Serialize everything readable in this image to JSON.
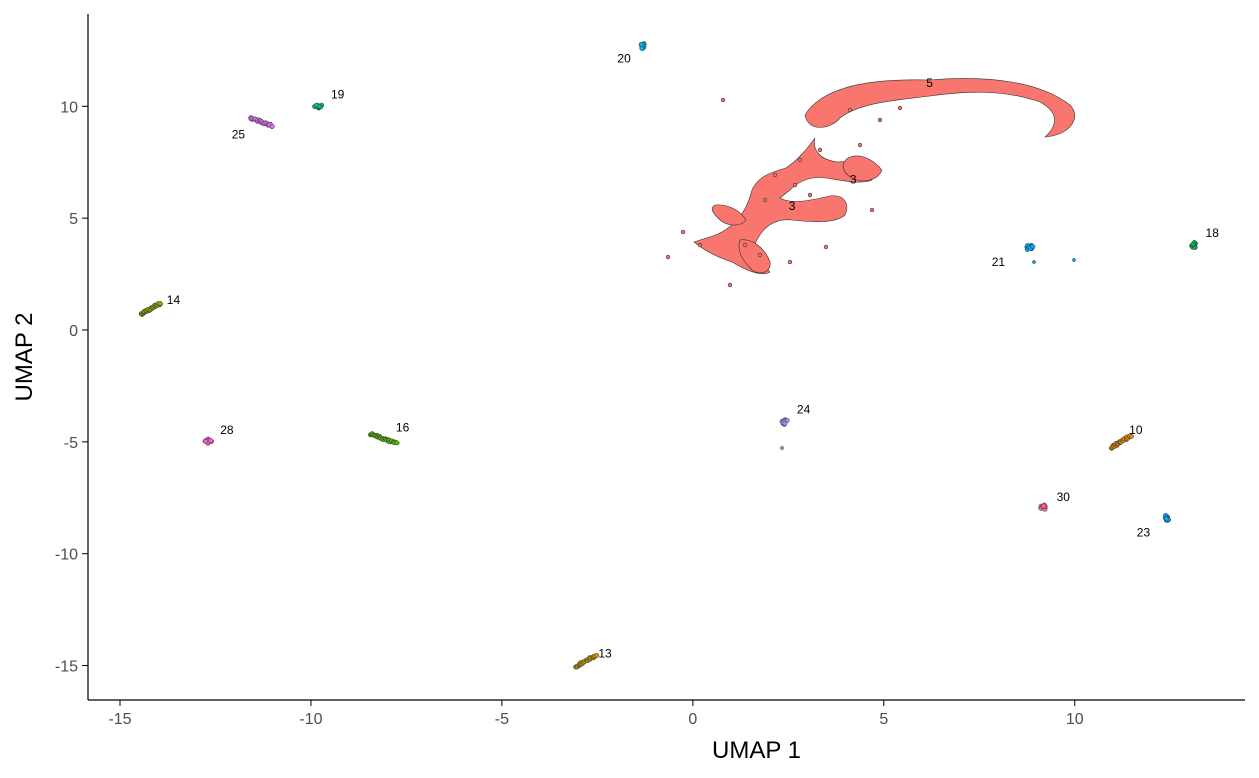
{
  "chart_data": {
    "type": "scatter",
    "title": "",
    "xlabel": "UMAP 1",
    "ylabel": "UMAP 2",
    "xlim": [
      -16,
      14.5
    ],
    "ylim": [
      -16.5,
      14
    ],
    "xticks": [
      -15,
      -10,
      -5,
      0,
      5,
      10
    ],
    "yticks": [
      -15,
      -10,
      -5,
      0,
      5,
      10
    ],
    "grid": false,
    "legend": "none",
    "series": [
      {
        "name": "3",
        "color": "#F8766D",
        "shape": "main-cloud",
        "x": 5.0,
        "y": 7.0
      },
      {
        "name": "5",
        "color": "#F8766D",
        "shape": "point-label",
        "x": 6.2,
        "y": 10.8
      },
      {
        "name": "10",
        "color": "#E38900",
        "shape": "elongated",
        "x": 11.2,
        "y": -5.0,
        "length": 0.6,
        "angle": 30
      },
      {
        "name": "13",
        "color": "#C49A00",
        "shape": "elongated",
        "x": -2.8,
        "y": -14.8,
        "length": 0.6,
        "angle": 30
      },
      {
        "name": "14",
        "color": "#99A800",
        "shape": "elongated",
        "x": -14.2,
        "y": 0.95,
        "length": 0.6,
        "angle": 30
      },
      {
        "name": "16",
        "color": "#53B400",
        "shape": "elongated",
        "x": -8.1,
        "y": -4.85,
        "length": 0.7,
        "angle": -20
      },
      {
        "name": "18",
        "color": "#00BC56",
        "shape": "blob",
        "x": 13.1,
        "y": 3.8
      },
      {
        "name": "19",
        "color": "#00C094",
        "shape": "blob",
        "x": -9.8,
        "y": 10.0
      },
      {
        "name": "20",
        "color": "#00B6EB",
        "shape": "blob",
        "x": -1.3,
        "y": 12.7
      },
      {
        "name": "21",
        "color": "#00A9FF",
        "shape": "blob",
        "x": 8.8,
        "y": 3.7
      },
      {
        "name": "23",
        "color": "#06A4FF",
        "shape": "blob",
        "x": 12.4,
        "y": -8.4
      },
      {
        "name": "24",
        "color": "#A58AFF",
        "shape": "blob",
        "x": 2.4,
        "y": -4.1
      },
      {
        "name": "25",
        "color": "#DF70F8",
        "shape": "elongated",
        "x": -11.3,
        "y": 9.3,
        "length": 0.6,
        "angle": -20
      },
      {
        "name": "28",
        "color": "#FB61D7",
        "shape": "blob",
        "x": -12.7,
        "y": -4.95
      },
      {
        "name": "30",
        "color": "#FF66A8",
        "shape": "blob",
        "x": 9.2,
        "y": -7.9
      }
    ],
    "labels": [
      {
        "text": "3",
        "x": 4.2,
        "y": 6.7
      },
      {
        "text": "3",
        "x": 2.6,
        "y": 5.5
      },
      {
        "text": "5",
        "x": 6.2,
        "y": 11.0
      },
      {
        "text": "10",
        "x": 11.6,
        "y": -4.5
      },
      {
        "text": "13",
        "x": -2.3,
        "y": -14.5
      },
      {
        "text": "14",
        "x": -13.6,
        "y": 1.3
      },
      {
        "text": "16",
        "x": -7.6,
        "y": -4.4
      },
      {
        "text": "18",
        "x": 13.6,
        "y": 4.3
      },
      {
        "text": "19",
        "x": -9.3,
        "y": 10.5
      },
      {
        "text": "20",
        "x": -1.8,
        "y": 12.1
      },
      {
        "text": "21",
        "x": 8.0,
        "y": 3.0
      },
      {
        "text": "23",
        "x": 11.8,
        "y": -9.1
      },
      {
        "text": "24",
        "x": 2.9,
        "y": -3.6
      },
      {
        "text": "25",
        "x": -11.9,
        "y": 8.7
      },
      {
        "text": "28",
        "x": -12.2,
        "y": -4.5
      },
      {
        "text": "30",
        "x": 9.7,
        "y": -7.5
      }
    ]
  }
}
